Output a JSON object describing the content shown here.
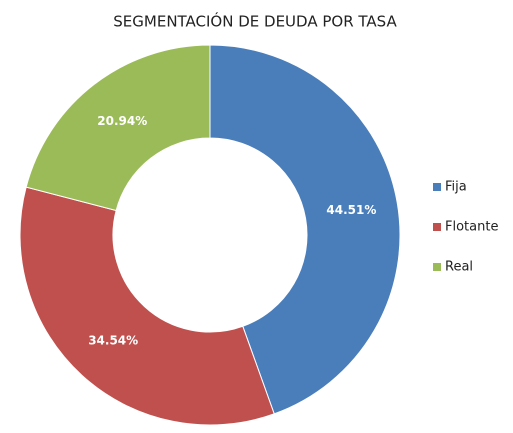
{
  "chart_data": {
    "type": "donut",
    "title": "SEGMENTACIÓN DE DEUDA POR TASA",
    "categories": [
      "Fija",
      "Flotante",
      "Real"
    ],
    "values": [
      44.51,
      34.54,
      20.94
    ],
    "value_labels": [
      "44.51%",
      "34.54%",
      "20.94%"
    ],
    "colors": [
      "#4a7ebb",
      "#c0504d",
      "#9bbb59"
    ],
    "legend": "right"
  }
}
